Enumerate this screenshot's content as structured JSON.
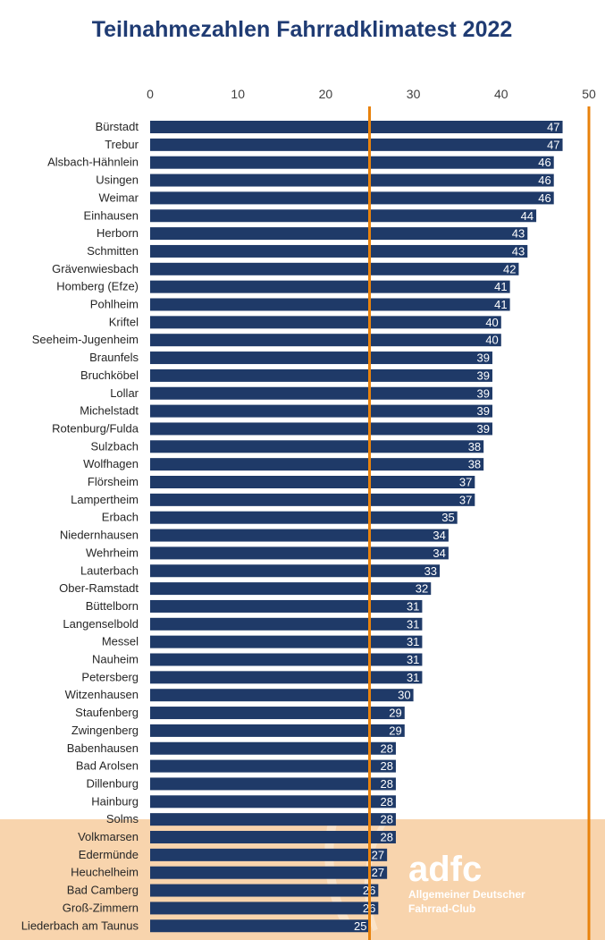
{
  "chart_data": {
    "type": "bar",
    "orientation": "horizontal",
    "title": "Teilnahmezahlen Fahrradklimatest 2022",
    "xlabel": "",
    "ylabel": "",
    "xlim": [
      0,
      50
    ],
    "xticks": [
      0,
      10,
      20,
      30,
      40,
      50
    ],
    "grid": false,
    "bar_color": "#1f3a68",
    "reference_lines": [
      {
        "value": 25,
        "color": "#e8820c"
      },
      {
        "value": 50,
        "color": "#e8820c"
      }
    ],
    "categories": [
      "Bürstadt",
      "Trebur",
      "Alsbach-Hähnlein",
      "Usingen",
      "Weimar",
      "Einhausen",
      "Herborn",
      "Schmitten",
      "Grävenwiesbach",
      "Homberg (Efze)",
      "Pohlheim",
      "Kriftel",
      "Seeheim-Jugenheim",
      "Braunfels",
      "Bruchköbel",
      "Lollar",
      "Michelstadt",
      "Rotenburg/Fulda",
      "Sulzbach",
      "Wolfhagen",
      "Flörsheim",
      "Lampertheim",
      "Erbach",
      "Niedernhausen",
      "Wehrheim",
      "Lauterbach",
      "Ober-Ramstadt",
      "Büttelborn",
      "Langenselbold",
      "Messel",
      "Nauheim",
      "Petersberg",
      "Witzenhausen",
      "Staufenberg",
      "Zwingenberg",
      "Babenhausen",
      "Bad Arolsen",
      "Dillenburg",
      "Hainburg",
      "Solms",
      "Volkmarsen",
      "Edermünde",
      "Heuchelheim",
      "Bad Camberg",
      "Groß-Zimmern",
      "Liederbach am Taunus"
    ],
    "values": [
      47,
      47,
      46,
      46,
      46,
      44,
      43,
      43,
      42,
      41,
      41,
      40,
      40,
      39,
      39,
      39,
      39,
      39,
      38,
      38,
      37,
      37,
      35,
      34,
      34,
      33,
      32,
      31,
      31,
      31,
      31,
      31,
      30,
      29,
      29,
      28,
      28,
      28,
      28,
      28,
      28,
      27,
      27,
      26,
      26,
      25
    ]
  },
  "colors": {
    "title": "#1f3b73",
    "footer_band": "#f8d4ad",
    "logo": "#ffffff"
  },
  "logo": {
    "name": "adfc",
    "line1": "Allgemeiner Deutscher",
    "line2": "Fahrrad-Club"
  }
}
